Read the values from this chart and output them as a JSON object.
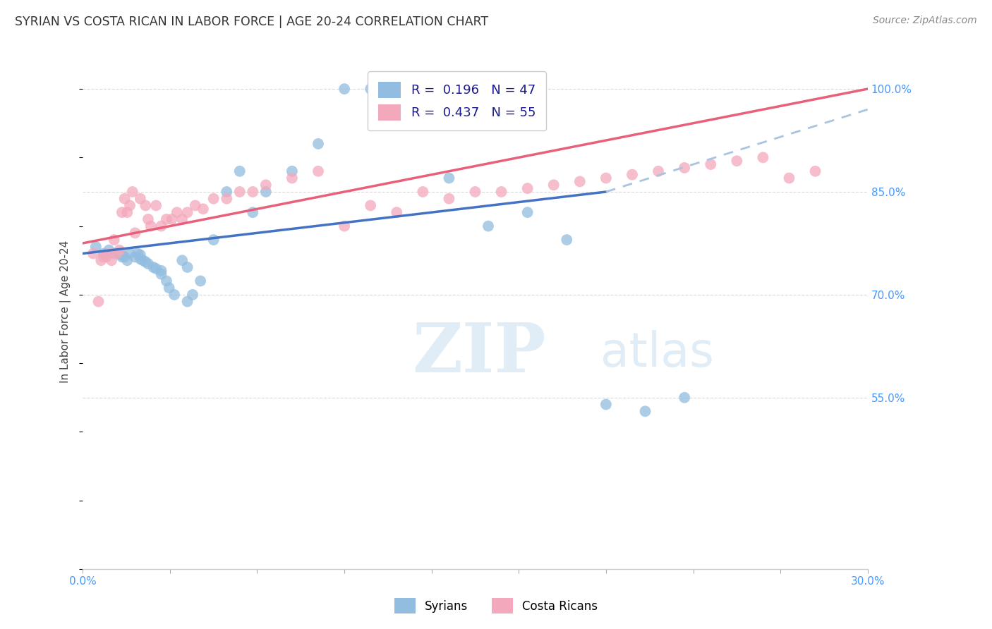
{
  "title": "SYRIAN VS COSTA RICAN IN LABOR FORCE | AGE 20-24 CORRELATION CHART",
  "source": "Source: ZipAtlas.com",
  "ylabel": "In Labor Force | Age 20-24",
  "ylabel_ticks": [
    "100.0%",
    "85.0%",
    "70.0%",
    "55.0%"
  ],
  "ylabel_tick_vals": [
    1.0,
    0.85,
    0.7,
    0.55
  ],
  "x_min": 0.0,
  "x_max": 0.3,
  "y_min": 0.3,
  "y_max": 1.05,
  "legend_blue_color": "#92bde0",
  "legend_pink_color": "#f4a8bb",
  "blue_line_color": "#4472c4",
  "pink_line_color": "#e8607a",
  "blue_dash_color": "#a8c4e0",
  "grid_color": "#d8d8d8",
  "watermark_zip": "ZIP",
  "watermark_atlas": "atlas",
  "background_color": "#ffffff",
  "blue_scatter_x": [
    0.005,
    0.008,
    0.01,
    0.012,
    0.013,
    0.015,
    0.015,
    0.016,
    0.017,
    0.018,
    0.02,
    0.021,
    0.022,
    0.022,
    0.023,
    0.024,
    0.025,
    0.027,
    0.028,
    0.03,
    0.03,
    0.032,
    0.033,
    0.035,
    0.038,
    0.04,
    0.04,
    0.042,
    0.045,
    0.05,
    0.055,
    0.06,
    0.065,
    0.07,
    0.08,
    0.09,
    0.1,
    0.11,
    0.12,
    0.13,
    0.14,
    0.155,
    0.17,
    0.185,
    0.2,
    0.215,
    0.23
  ],
  "blue_scatter_y": [
    0.77,
    0.76,
    0.765,
    0.76,
    0.76,
    0.755,
    0.758,
    0.755,
    0.75,
    0.76,
    0.755,
    0.76,
    0.758,
    0.752,
    0.75,
    0.748,
    0.745,
    0.74,
    0.738,
    0.735,
    0.73,
    0.72,
    0.71,
    0.7,
    0.75,
    0.74,
    0.69,
    0.7,
    0.72,
    0.78,
    0.85,
    0.88,
    0.82,
    0.85,
    0.88,
    0.92,
    1.0,
    1.0,
    1.0,
    0.99,
    0.87,
    0.8,
    0.82,
    0.78,
    0.54,
    0.53,
    0.55
  ],
  "pink_scatter_x": [
    0.004,
    0.006,
    0.007,
    0.008,
    0.009,
    0.01,
    0.011,
    0.012,
    0.013,
    0.014,
    0.015,
    0.016,
    0.017,
    0.018,
    0.019,
    0.02,
    0.022,
    0.024,
    0.025,
    0.026,
    0.028,
    0.03,
    0.032,
    0.034,
    0.036,
    0.038,
    0.04,
    0.043,
    0.046,
    0.05,
    0.055,
    0.06,
    0.065,
    0.07,
    0.08,
    0.09,
    0.1,
    0.11,
    0.12,
    0.13,
    0.14,
    0.15,
    0.16,
    0.17,
    0.18,
    0.19,
    0.2,
    0.21,
    0.22,
    0.23,
    0.24,
    0.25,
    0.26,
    0.27,
    0.28
  ],
  "pink_scatter_y": [
    0.76,
    0.69,
    0.75,
    0.755,
    0.755,
    0.76,
    0.75,
    0.78,
    0.76,
    0.765,
    0.82,
    0.84,
    0.82,
    0.83,
    0.85,
    0.79,
    0.84,
    0.83,
    0.81,
    0.8,
    0.83,
    0.8,
    0.81,
    0.81,
    0.82,
    0.81,
    0.82,
    0.83,
    0.825,
    0.84,
    0.84,
    0.85,
    0.85,
    0.86,
    0.87,
    0.88,
    0.8,
    0.83,
    0.82,
    0.85,
    0.84,
    0.85,
    0.85,
    0.855,
    0.86,
    0.865,
    0.87,
    0.875,
    0.88,
    0.885,
    0.89,
    0.895,
    0.9,
    0.87,
    0.88
  ],
  "blue_line_x0": 0.0,
  "blue_line_y0": 0.76,
  "blue_line_x1": 0.2,
  "blue_line_y1": 0.85,
  "pink_line_x0": 0.0,
  "pink_line_y0": 0.775,
  "pink_line_x1": 0.3,
  "pink_line_y1": 1.0,
  "dash_line_x0": 0.2,
  "dash_line_y0": 0.85,
  "dash_line_x1": 0.3,
  "dash_line_y1": 0.97
}
